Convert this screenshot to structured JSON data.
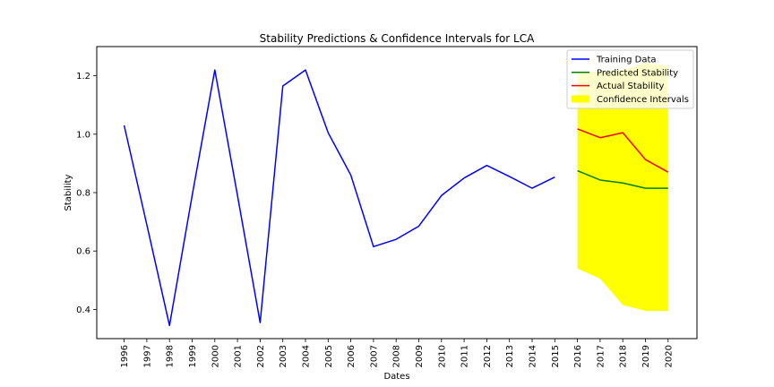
{
  "chart_data": {
    "type": "line",
    "title": "Stability Predictions & Confidence Intervals for LCA",
    "xlabel": "Dates",
    "ylabel": "Stability",
    "categories": [
      "1996",
      "1997",
      "1998",
      "1999",
      "2000",
      "2001",
      "2002",
      "2003",
      "2004",
      "2005",
      "2006",
      "2007",
      "2008",
      "2009",
      "2010",
      "2011",
      "2012",
      "2013",
      "2014",
      "2015",
      "2016",
      "2017",
      "2018",
      "2019",
      "2020"
    ],
    "yticks": [
      "0.4",
      "0.6",
      "0.8",
      "1.0",
      "1.2"
    ],
    "ylim": [
      0.3,
      1.3
    ],
    "grid": false,
    "legend_position": "top-right",
    "series": [
      {
        "name": "Training Data",
        "color": "#0000ff",
        "x": [
          "1996",
          "1997",
          "1998",
          "1999",
          "2000",
          "2001",
          "2002",
          "2003",
          "2004",
          "2005",
          "2006",
          "2007",
          "2008",
          "2009",
          "2010",
          "2011",
          "2012",
          "2013",
          "2014",
          "2015"
        ],
        "values": [
          1.03,
          0.69,
          0.345,
          0.79,
          1.22,
          0.79,
          0.355,
          1.165,
          1.22,
          1.005,
          0.86,
          0.615,
          0.64,
          0.685,
          0.79,
          0.85,
          0.893,
          0.855,
          0.815,
          0.853
        ]
      },
      {
        "name": "Predicted Stability",
        "color": "#008000",
        "x": [
          "2016",
          "2017",
          "2018",
          "2019",
          "2020"
        ],
        "values": [
          0.875,
          0.843,
          0.833,
          0.815,
          0.815
        ]
      },
      {
        "name": "Actual Stability",
        "color": "#ff0000",
        "x": [
          "2016",
          "2017",
          "2018",
          "2019",
          "2020"
        ],
        "values": [
          1.018,
          0.988,
          1.005,
          0.913,
          0.87
        ]
      }
    ],
    "confidence_interval": {
      "name": "Confidence Intervals",
      "color": "#ffff00",
      "x": [
        "2016",
        "2017",
        "2018",
        "2019",
        "2020"
      ],
      "lower": [
        0.54,
        0.505,
        0.415,
        0.395,
        0.395
      ],
      "upper": [
        1.215,
        1.215,
        1.22,
        1.245,
        1.235
      ]
    }
  }
}
